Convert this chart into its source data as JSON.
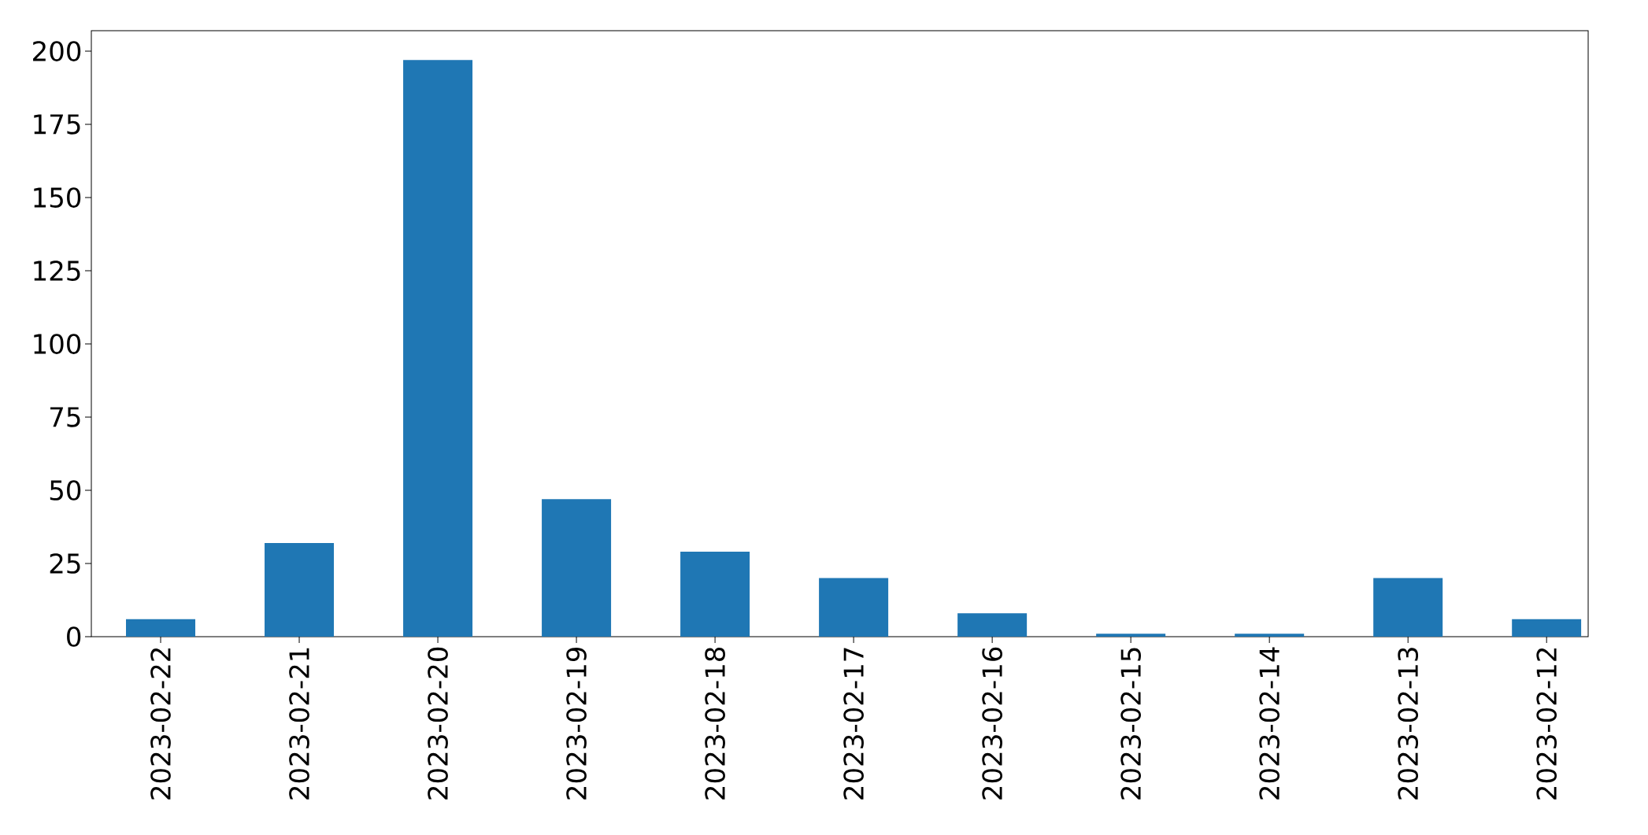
{
  "chart_data": {
    "type": "bar",
    "categories": [
      "2023-02-22",
      "2023-02-21",
      "2023-02-20",
      "2023-02-19",
      "2023-02-18",
      "2023-02-17",
      "2023-02-16",
      "2023-02-15",
      "2023-02-14",
      "2023-02-13",
      "2023-02-12"
    ],
    "values": [
      6,
      32,
      197,
      47,
      29,
      20,
      8,
      1,
      1,
      20,
      6
    ],
    "color": "#1f77b4",
    "ylim": [
      0,
      207
    ],
    "yticks": [
      0,
      25,
      50,
      75,
      100,
      125,
      150,
      175,
      200
    ]
  }
}
